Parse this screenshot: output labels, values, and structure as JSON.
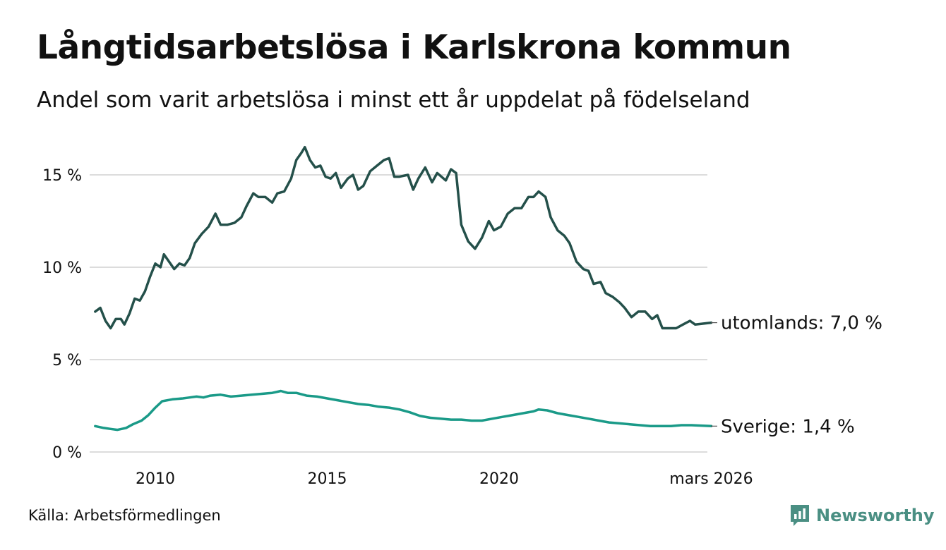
{
  "title": "Långtidsarbetslösa i Karlskrona kommun",
  "subtitle": "Andel som varit arbetslösa i minst ett år uppdelat på födelseland",
  "source": "Källa: Arbetsförmedlingen",
  "brand": {
    "name": "Newsworthy",
    "icon": "newsworthy-logo-icon",
    "color": "#4a8f83"
  },
  "chart_data": {
    "type": "line",
    "title": "Långtidsarbetslösa i Karlskrona kommun",
    "subtitle": "Andel som varit arbetslösa i minst ett år uppdelat på födelseland",
    "xlabel": "",
    "ylabel": "",
    "xlim": [
      2008.2,
      2026.17
    ],
    "ylim": [
      0,
      16.5
    ],
    "grid": true,
    "x_ticks": [
      {
        "value": 2010,
        "label": "2010"
      },
      {
        "value": 2015,
        "label": "2015"
      },
      {
        "value": 2020,
        "label": "2020"
      },
      {
        "value": 2026.17,
        "label": "mars 2026"
      }
    ],
    "y_ticks": [
      {
        "value": 0,
        "label": "0 %"
      },
      {
        "value": 5,
        "label": "5 %"
      },
      {
        "value": 10,
        "label": "10 %"
      },
      {
        "value": 15,
        "label": "15 %"
      }
    ],
    "series": [
      {
        "name": "utomlands",
        "end_label": "utomlands: 7,0 %",
        "color": "#24504a",
        "points": [
          [
            2008.25,
            7.6
          ],
          [
            2008.4,
            7.8
          ],
          [
            2008.55,
            7.1
          ],
          [
            2008.7,
            6.7
          ],
          [
            2008.85,
            7.2
          ],
          [
            2009.0,
            7.2
          ],
          [
            2009.1,
            6.9
          ],
          [
            2009.25,
            7.5
          ],
          [
            2009.4,
            8.3
          ],
          [
            2009.55,
            8.2
          ],
          [
            2009.7,
            8.7
          ],
          [
            2009.85,
            9.5
          ],
          [
            2010.0,
            10.2
          ],
          [
            2010.15,
            10.0
          ],
          [
            2010.25,
            10.7
          ],
          [
            2010.4,
            10.3
          ],
          [
            2010.55,
            9.9
          ],
          [
            2010.7,
            10.2
          ],
          [
            2010.85,
            10.1
          ],
          [
            2011.0,
            10.5
          ],
          [
            2011.15,
            11.3
          ],
          [
            2011.35,
            11.8
          ],
          [
            2011.55,
            12.2
          ],
          [
            2011.75,
            12.9
          ],
          [
            2011.9,
            12.3
          ],
          [
            2012.1,
            12.3
          ],
          [
            2012.3,
            12.4
          ],
          [
            2012.5,
            12.7
          ],
          [
            2012.65,
            13.3
          ],
          [
            2012.85,
            14.0
          ],
          [
            2013.0,
            13.8
          ],
          [
            2013.2,
            13.8
          ],
          [
            2013.4,
            13.5
          ],
          [
            2013.55,
            14.0
          ],
          [
            2013.75,
            14.1
          ],
          [
            2013.95,
            14.8
          ],
          [
            2014.1,
            15.8
          ],
          [
            2014.25,
            16.2
          ],
          [
            2014.35,
            16.5
          ],
          [
            2014.5,
            15.8
          ],
          [
            2014.65,
            15.4
          ],
          [
            2014.8,
            15.5
          ],
          [
            2014.95,
            14.9
          ],
          [
            2015.1,
            14.8
          ],
          [
            2015.25,
            15.1
          ],
          [
            2015.4,
            14.3
          ],
          [
            2015.6,
            14.8
          ],
          [
            2015.75,
            15.0
          ],
          [
            2015.9,
            14.2
          ],
          [
            2016.05,
            14.4
          ],
          [
            2016.25,
            15.2
          ],
          [
            2016.45,
            15.5
          ],
          [
            2016.65,
            15.8
          ],
          [
            2016.8,
            15.9
          ],
          [
            2016.95,
            14.9
          ],
          [
            2017.1,
            14.9
          ],
          [
            2017.35,
            15.0
          ],
          [
            2017.5,
            14.2
          ],
          [
            2017.65,
            14.8
          ],
          [
            2017.85,
            15.4
          ],
          [
            2018.05,
            14.6
          ],
          [
            2018.2,
            15.1
          ],
          [
            2018.45,
            14.7
          ],
          [
            2018.6,
            15.3
          ],
          [
            2018.75,
            15.1
          ],
          [
            2018.9,
            12.3
          ],
          [
            2019.1,
            11.4
          ],
          [
            2019.3,
            11.0
          ],
          [
            2019.5,
            11.6
          ],
          [
            2019.7,
            12.5
          ],
          [
            2019.85,
            12.0
          ],
          [
            2020.05,
            12.2
          ],
          [
            2020.25,
            12.9
          ],
          [
            2020.45,
            13.2
          ],
          [
            2020.65,
            13.2
          ],
          [
            2020.85,
            13.8
          ],
          [
            2021.0,
            13.8
          ],
          [
            2021.15,
            14.1
          ],
          [
            2021.35,
            13.8
          ],
          [
            2021.5,
            12.7
          ],
          [
            2021.7,
            12.0
          ],
          [
            2021.9,
            11.7
          ],
          [
            2022.05,
            11.3
          ],
          [
            2022.25,
            10.3
          ],
          [
            2022.45,
            9.9
          ],
          [
            2022.6,
            9.8
          ],
          [
            2022.75,
            9.1
          ],
          [
            2022.95,
            9.2
          ],
          [
            2023.1,
            8.6
          ],
          [
            2023.3,
            8.4
          ],
          [
            2023.5,
            8.1
          ],
          [
            2023.65,
            7.8
          ],
          [
            2023.85,
            7.3
          ],
          [
            2024.05,
            7.6
          ],
          [
            2024.25,
            7.6
          ],
          [
            2024.45,
            7.2
          ],
          [
            2024.6,
            7.4
          ],
          [
            2024.75,
            6.7
          ],
          [
            2024.95,
            6.7
          ],
          [
            2025.15,
            6.7
          ],
          [
            2025.35,
            6.9
          ],
          [
            2025.55,
            7.1
          ],
          [
            2025.7,
            6.9
          ],
          [
            2026.17,
            7.0
          ]
        ]
      },
      {
        "name": "Sverige",
        "end_label": "Sverige: 1,4 %",
        "color": "#1a9a88",
        "points": [
          [
            2008.25,
            1.4
          ],
          [
            2008.5,
            1.3
          ],
          [
            2008.7,
            1.25
          ],
          [
            2008.9,
            1.2
          ],
          [
            2009.15,
            1.3
          ],
          [
            2009.35,
            1.5
          ],
          [
            2009.6,
            1.7
          ],
          [
            2009.8,
            2.0
          ],
          [
            2010.0,
            2.4
          ],
          [
            2010.2,
            2.75
          ],
          [
            2010.5,
            2.85
          ],
          [
            2010.8,
            2.9
          ],
          [
            2011.0,
            2.95
          ],
          [
            2011.2,
            3.0
          ],
          [
            2011.4,
            2.95
          ],
          [
            2011.6,
            3.05
          ],
          [
            2011.9,
            3.1
          ],
          [
            2012.2,
            3.0
          ],
          [
            2012.5,
            3.05
          ],
          [
            2012.8,
            3.1
          ],
          [
            2013.1,
            3.15
          ],
          [
            2013.4,
            3.2
          ],
          [
            2013.65,
            3.3
          ],
          [
            2013.85,
            3.2
          ],
          [
            2014.1,
            3.2
          ],
          [
            2014.4,
            3.05
          ],
          [
            2014.7,
            3.0
          ],
          [
            2015.0,
            2.9
          ],
          [
            2015.3,
            2.8
          ],
          [
            2015.6,
            2.7
          ],
          [
            2015.9,
            2.6
          ],
          [
            2016.2,
            2.55
          ],
          [
            2016.5,
            2.45
          ],
          [
            2016.8,
            2.4
          ],
          [
            2017.1,
            2.3
          ],
          [
            2017.4,
            2.15
          ],
          [
            2017.7,
            1.95
          ],
          [
            2018.0,
            1.85
          ],
          [
            2018.3,
            1.8
          ],
          [
            2018.6,
            1.75
          ],
          [
            2018.9,
            1.75
          ],
          [
            2019.2,
            1.7
          ],
          [
            2019.5,
            1.7
          ],
          [
            2019.8,
            1.8
          ],
          [
            2020.1,
            1.9
          ],
          [
            2020.4,
            2.0
          ],
          [
            2020.7,
            2.1
          ],
          [
            2021.0,
            2.2
          ],
          [
            2021.15,
            2.3
          ],
          [
            2021.4,
            2.25
          ],
          [
            2021.7,
            2.1
          ],
          [
            2022.0,
            2.0
          ],
          [
            2022.3,
            1.9
          ],
          [
            2022.6,
            1.8
          ],
          [
            2022.9,
            1.7
          ],
          [
            2023.2,
            1.6
          ],
          [
            2023.5,
            1.55
          ],
          [
            2023.8,
            1.5
          ],
          [
            2024.1,
            1.45
          ],
          [
            2024.4,
            1.4
          ],
          [
            2024.7,
            1.4
          ],
          [
            2025.0,
            1.4
          ],
          [
            2025.3,
            1.45
          ],
          [
            2025.6,
            1.45
          ],
          [
            2026.17,
            1.4
          ]
        ]
      }
    ]
  }
}
